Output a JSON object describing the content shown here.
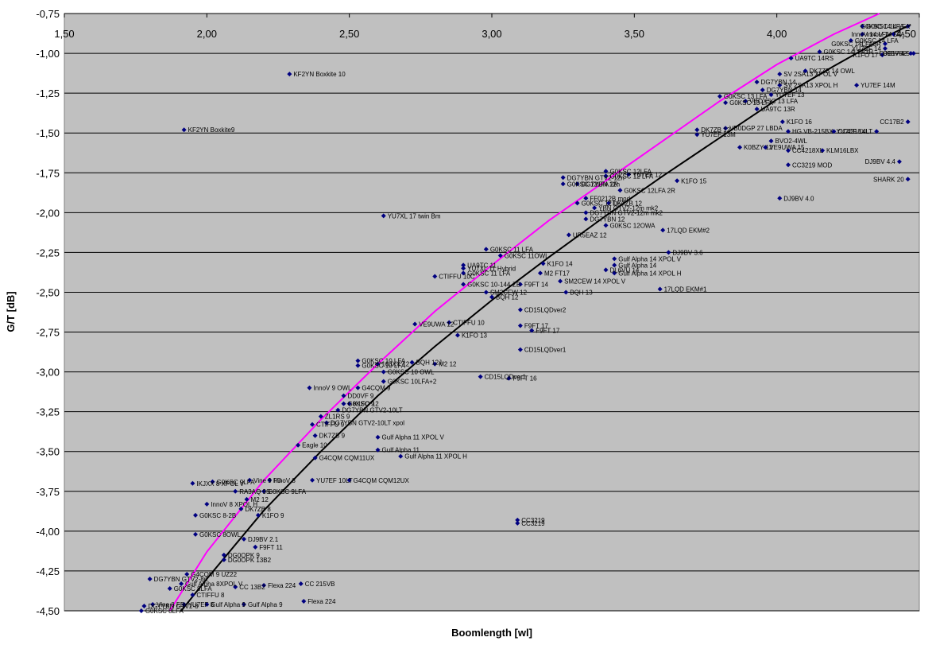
{
  "chart_data": {
    "type": "scatter",
    "title": "",
    "xlabel": "Boomlength [wl]",
    "ylabel": "G/T [dB]",
    "xlim": [
      1.5,
      4.5
    ],
    "ylim": [
      -4.5,
      -0.75
    ],
    "x_ticks": [
      "1,50",
      "2,00",
      "2,50",
      "3,00",
      "3,50",
      "4,00",
      "4,50"
    ],
    "y_ticks": [
      "-0,75",
      "-1,00",
      "-1,25",
      "-1,50",
      "-1,75",
      "-2,00",
      "-2,25",
      "-2,50",
      "-2,75",
      "-3,00",
      "-3,25",
      "-3,50",
      "-3,75",
      "-4,00",
      "-4,25",
      "-4,50"
    ],
    "grid": "horizontal",
    "legend": "none",
    "colors": {
      "plot_bg": "#c0c0c0",
      "marker": "#000080",
      "trend_upper": "#ff00ff",
      "trend_lower": "#000000",
      "grid": "#000000"
    },
    "trendlines": [
      {
        "color": "#ff00ff",
        "points": [
          [
            1.87,
            -4.5
          ],
          [
            2.0,
            -4.13
          ],
          [
            2.2,
            -3.68
          ],
          [
            2.4,
            -3.3
          ],
          [
            2.6,
            -2.95
          ],
          [
            2.8,
            -2.62
          ],
          [
            3.0,
            -2.33
          ],
          [
            3.2,
            -2.05
          ],
          [
            3.4,
            -1.8
          ],
          [
            3.6,
            -1.55
          ],
          [
            3.8,
            -1.3
          ],
          [
            4.0,
            -1.07
          ],
          [
            4.2,
            -0.88
          ],
          [
            4.36,
            -0.75
          ]
        ]
      },
      {
        "color": "#000000",
        "points": [
          [
            1.91,
            -4.5
          ],
          [
            2.0,
            -4.3
          ],
          [
            2.2,
            -3.87
          ],
          [
            2.4,
            -3.5
          ],
          [
            2.6,
            -3.15
          ],
          [
            2.8,
            -2.84
          ],
          [
            3.0,
            -2.55
          ],
          [
            3.2,
            -2.28
          ],
          [
            3.4,
            -2.02
          ],
          [
            3.6,
            -1.77
          ],
          [
            3.8,
            -1.53
          ],
          [
            4.0,
            -1.29
          ],
          [
            4.2,
            -1.08
          ],
          [
            4.4,
            -0.88
          ],
          [
            4.47,
            -0.82
          ]
        ]
      }
    ],
    "points": [
      {
        "x": 1.92,
        "y": -1.48,
        "label": "KF2YN Boxkite9"
      },
      {
        "x": 2.29,
        "y": -1.13,
        "label": "KF2YN Boxkite 10"
      },
      {
        "x": 2.62,
        "y": -2.02,
        "label": "YU7XL 17 twin Bm"
      },
      {
        "x": 2.36,
        "y": -3.1,
        "label": "InnoV 9 OWL"
      },
      {
        "x": 2.53,
        "y": -2.93,
        "label": "G0KSC 10 LFA"
      },
      {
        "x": 2.53,
        "y": -2.96,
        "label": "G0KSC 10 LFA"
      },
      {
        "x": 2.6,
        "y": -2.95,
        "label": "10JXX 12"
      },
      {
        "x": 2.72,
        "y": -2.94,
        "label": "BQH 12J"
      },
      {
        "x": 2.8,
        "y": -2.95,
        "label": "M2 12"
      },
      {
        "x": 2.62,
        "y": -3.0,
        "label": "G0KSC 10 OWL"
      },
      {
        "x": 2.62,
        "y": -3.06,
        "label": "G0KSC 10LFA+2"
      },
      {
        "x": 2.96,
        "y": -3.03,
        "label": "CD15LQDver1"
      },
      {
        "x": 3.06,
        "y": -3.04,
        "label": "F9FT 16"
      },
      {
        "x": 3.1,
        "y": -2.86,
        "label": "CD15LQDver1"
      },
      {
        "x": 3.14,
        "y": -2.74,
        "label": "F9FT 17"
      },
      {
        "x": 3.1,
        "y": -2.61,
        "label": "CD15LQDver2"
      },
      {
        "x": 3.1,
        "y": -2.71,
        "label": "F9FT 17"
      },
      {
        "x": 2.88,
        "y": -2.77,
        "label": "K1FO 13"
      },
      {
        "x": 2.73,
        "y": -2.7,
        "label": "VE9UWA 12"
      },
      {
        "x": 2.85,
        "y": -2.69,
        "label": "CTIFFU 10"
      },
      {
        "x": 2.53,
        "y": -3.1,
        "label": "G4CQM 9"
      },
      {
        "x": 2.48,
        "y": -3.15,
        "label": "DD0VF 9"
      },
      {
        "x": 2.48,
        "y": -3.2,
        "label": "G0KSC 9"
      },
      {
        "x": 2.46,
        "y": -3.24,
        "label": "DG7YBN GTV2-10LT"
      },
      {
        "x": 2.5,
        "y": -3.2,
        "label": "K1FO 12"
      },
      {
        "x": 2.4,
        "y": -3.28,
        "label": "ZL1RS 9"
      },
      {
        "x": 2.37,
        "y": -3.33,
        "label": "CTIFFU 9"
      },
      {
        "x": 2.42,
        "y": -3.32,
        "label": "DG7YBN GTV2-10LT xpol"
      },
      {
        "x": 2.38,
        "y": -3.4,
        "label": "DK7ZB 9"
      },
      {
        "x": 2.6,
        "y": -3.41,
        "label": "Gulf Alpha 11 XPOL V"
      },
      {
        "x": 2.6,
        "y": -3.49,
        "label": "Gulf Alpha 11"
      },
      {
        "x": 2.68,
        "y": -3.53,
        "label": "Gulf Alpha 11 XPOL H"
      },
      {
        "x": 2.38,
        "y": -3.54,
        "label": "G4CQM CQM11UX"
      },
      {
        "x": 2.32,
        "y": -3.46,
        "label": "Eagle 10"
      },
      {
        "x": 2.5,
        "y": -3.68,
        "label": "G4CQM CQM12UX"
      },
      {
        "x": 2.37,
        "y": -3.68,
        "label": "YU7EF 10LT"
      },
      {
        "x": 2.15,
        "y": -3.68,
        "label": "Vine 9 FD"
      },
      {
        "x": 2.22,
        "y": -3.68,
        "label": "InnoV 8"
      },
      {
        "x": 2.02,
        "y": -3.69,
        "label": "G0KSC 9LFA"
      },
      {
        "x": 1.95,
        "y": -3.7,
        "label": "IKJXX 8 XPOL V"
      },
      {
        "x": 2.2,
        "y": -3.75,
        "label": "G0KSC 9LFA"
      },
      {
        "x": 2.1,
        "y": -3.75,
        "label": "RA3AQ 9S"
      },
      {
        "x": 2.14,
        "y": -3.8,
        "label": "M2 12"
      },
      {
        "x": 2.0,
        "y": -3.83,
        "label": "InnoV 8 XPOL H"
      },
      {
        "x": 2.12,
        "y": -3.86,
        "label": "DK7ZB 8"
      },
      {
        "x": 2.18,
        "y": -3.9,
        "label": "K1FO 9"
      },
      {
        "x": 1.96,
        "y": -3.9,
        "label": "G0KSC 8-2B"
      },
      {
        "x": 1.96,
        "y": -4.02,
        "label": "G0KSC 8OWL"
      },
      {
        "x": 2.13,
        "y": -4.05,
        "label": "DJ9BV 2.1"
      },
      {
        "x": 2.17,
        "y": -4.1,
        "label": "F9FT 11"
      },
      {
        "x": 2.06,
        "y": -4.15,
        "label": "DG0OPK 9"
      },
      {
        "x": 2.06,
        "y": -4.18,
        "label": "DG0OPK 13B2"
      },
      {
        "x": 1.93,
        "y": -4.27,
        "label": "G4CQM 9 UZ22"
      },
      {
        "x": 1.8,
        "y": -4.3,
        "label": "DG7YBN GTV2-8n"
      },
      {
        "x": 1.91,
        "y": -4.33,
        "label": "Gulf Alpha 8XPOL V"
      },
      {
        "x": 2.1,
        "y": -4.35,
        "label": "CC 13B2"
      },
      {
        "x": 2.2,
        "y": -4.34,
        "label": "Flexa 224"
      },
      {
        "x": 2.33,
        "y": -4.33,
        "label": "CC 215VB"
      },
      {
        "x": 2.34,
        "y": -4.44,
        "label": "Flexa 224"
      },
      {
        "x": 1.87,
        "y": -4.36,
        "label": "G0KSC 8LFA"
      },
      {
        "x": 1.95,
        "y": -4.4,
        "label": "CTIFFU 8"
      },
      {
        "x": 1.81,
        "y": -4.46,
        "label": "Vine 8 FD"
      },
      {
        "x": 1.78,
        "y": -4.47,
        "label": "DG7YBN GTV2-8"
      },
      {
        "x": 1.92,
        "y": -4.46,
        "label": "YU7EF 8"
      },
      {
        "x": 2.0,
        "y": -4.46,
        "label": "Gulf Alpha 9"
      },
      {
        "x": 1.77,
        "y": -4.5,
        "label": "G0KSC 8LFA"
      },
      {
        "x": 2.13,
        "y": -4.46,
        "label": "Gulf Alpha 9"
      },
      {
        "x": 2.98,
        "y": -2.23,
        "label": "G0KSC 11 LFA"
      },
      {
        "x": 3.03,
        "y": -2.27,
        "label": "G0KSC 11OWL"
      },
      {
        "x": 2.9,
        "y": -2.33,
        "label": "UA9TC 11"
      },
      {
        "x": 2.9,
        "y": -2.35,
        "label": "YU7XL 11 Hybrid"
      },
      {
        "x": 2.9,
        "y": -2.38,
        "label": "G0KSC 11 LFA"
      },
      {
        "x": 2.8,
        "y": -2.4,
        "label": "CTIFFU 10C"
      },
      {
        "x": 2.9,
        "y": -2.45,
        "label": "G0KSC 10-144-ZB"
      },
      {
        "x": 2.98,
        "y": -2.5,
        "label": "SM2CEW 12"
      },
      {
        "x": 3.0,
        "y": -2.53,
        "label": "BQH 12"
      },
      {
        "x": 3.1,
        "y": -2.45,
        "label": "F9FT 14"
      },
      {
        "x": 3.17,
        "y": -2.38,
        "label": "M2 FT17"
      },
      {
        "x": 3.18,
        "y": -2.32,
        "label": "K1FO 14"
      },
      {
        "x": 3.26,
        "y": -2.5,
        "label": "BQH 13"
      },
      {
        "x": 3.24,
        "y": -2.43,
        "label": "SM2CEW 14 XPOL V"
      },
      {
        "x": 3.4,
        "y": -2.36,
        "label": "DL6VU 14"
      },
      {
        "x": 3.43,
        "y": -2.29,
        "label": "Gulf Alpha 14 XPOL V"
      },
      {
        "x": 3.43,
        "y": -2.33,
        "label": "Gulf Alpha 14"
      },
      {
        "x": 3.43,
        "y": -2.38,
        "label": "Gulf Alpha 14 XPOL H"
      },
      {
        "x": 3.62,
        "y": -2.25,
        "label": "DJ9BV 3.6"
      },
      {
        "x": 3.59,
        "y": -2.48,
        "label": "17LQD EKM#1"
      },
      {
        "x": 3.6,
        "y": -2.11,
        "label": "17LQD EKM#2"
      },
      {
        "x": 3.27,
        "y": -2.14,
        "label": "UR5EAZ 12"
      },
      {
        "x": 3.33,
        "y": -2.04,
        "label": "DG7YBN 12"
      },
      {
        "x": 3.33,
        "y": -2.0,
        "label": "DG7YBN GTV2-12m mk2"
      },
      {
        "x": 3.36,
        "y": -1.97,
        "label": "YBN GTV2-12m mk2"
      },
      {
        "x": 3.3,
        "y": -1.94,
        "label": "G0KSC 12 LFA"
      },
      {
        "x": 3.4,
        "y": -2.08,
        "label": "G0KSC 12OWA"
      },
      {
        "x": 3.41,
        "y": -1.94,
        "label": "DK7ZB 12"
      },
      {
        "x": 3.33,
        "y": -1.91,
        "label": "FF0212B mod"
      },
      {
        "x": 3.3,
        "y": -1.82,
        "label": "DG7YBN 12n"
      },
      {
        "x": 3.25,
        "y": -1.82,
        "label": "G0KSC 12LFA 2R"
      },
      {
        "x": 3.25,
        "y": -1.78,
        "label": "DG7YBN GTV2-12n"
      },
      {
        "x": 3.4,
        "y": -1.74,
        "label": "G0KSC 12LFA"
      },
      {
        "x": 3.4,
        "y": -1.77,
        "label": "G0KSC 12 LFA"
      },
      {
        "x": 3.48,
        "y": -1.76,
        "label": "YU7EF 12"
      },
      {
        "x": 3.45,
        "y": -1.86,
        "label": "G0KSC 12LFA 2R"
      },
      {
        "x": 3.65,
        "y": -1.8,
        "label": "K1FO 15"
      },
      {
        "x": 3.72,
        "y": -1.51,
        "label": "YU7EF 13M"
      },
      {
        "x": 3.72,
        "y": -1.48,
        "label": "DK7ZB 12"
      },
      {
        "x": 3.82,
        "y": -1.47,
        "label": "VB0DGP 27 LBDA"
      },
      {
        "x": 3.87,
        "y": -1.59,
        "label": "K0BZY 12"
      },
      {
        "x": 3.96,
        "y": -1.59,
        "label": "VE9UWA 15"
      },
      {
        "x": 3.98,
        "y": -1.55,
        "label": "BVO2-4WL"
      },
      {
        "x": 4.02,
        "y": -1.43,
        "label": "K1FO 16"
      },
      {
        "x": 4.04,
        "y": -1.49,
        "label": "HG VB-215BX"
      },
      {
        "x": 4.04,
        "y": -1.61,
        "label": "CC4218XL"
      },
      {
        "x": 4.16,
        "y": -1.61,
        "label": "KLM16LBX"
      },
      {
        "x": 4.2,
        "y": -1.49,
        "label": "CC4218XL"
      },
      {
        "x": 4.04,
        "y": -1.7,
        "label": "CC3219 MOD"
      },
      {
        "x": 4.01,
        "y": -1.91,
        "label": "DJ9BV 4.0"
      },
      {
        "x": 4.35,
        "y": -1.49,
        "label": "YU7EF 14LT"
      },
      {
        "x": 4.46,
        "y": -1.43,
        "label": "CC17B2"
      },
      {
        "x": 4.43,
        "y": -1.68,
        "label": "DJ9BV 4.4"
      },
      {
        "x": 4.46,
        "y": -1.79,
        "label": "SHARK 20"
      },
      {
        "x": 4.1,
        "y": -1.11,
        "label": "DK7ZB 14 OWL"
      },
      {
        "x": 3.93,
        "y": -1.18,
        "label": "DG7YBN 14"
      },
      {
        "x": 3.95,
        "y": -1.23,
        "label": "DG7YBN 14"
      },
      {
        "x": 3.98,
        "y": -1.26,
        "label": "YU7EF 13"
      },
      {
        "x": 4.01,
        "y": -1.13,
        "label": "SV 2SA13 XPOL V"
      },
      {
        "x": 4.01,
        "y": -1.2,
        "label": "SV 2SA13 XPOL H"
      },
      {
        "x": 4.28,
        "y": -1.2,
        "label": "YU7EF 14M"
      },
      {
        "x": 3.8,
        "y": -1.27,
        "label": "G0KSC 13 LFA"
      },
      {
        "x": 3.82,
        "y": -1.31,
        "label": "G0KSC 13 LFA"
      },
      {
        "x": 3.89,
        "y": -1.3,
        "label": "VBOXSC 13 LFA"
      },
      {
        "x": 3.93,
        "y": -1.35,
        "label": "UA9TC 13R"
      },
      {
        "x": 4.05,
        "y": -1.03,
        "label": "UA9TC 14RS"
      },
      {
        "x": 4.15,
        "y": -0.99,
        "label": "G0KSC 14LFA3R"
      },
      {
        "x": 4.26,
        "y": -0.92,
        "label": "G0KSC 14 LFA"
      },
      {
        "x": 4.3,
        "y": -0.88,
        "label": "InnoV 14 LFA"
      },
      {
        "x": 4.3,
        "y": -0.83,
        "label": "G0KSC 14 LFA"
      },
      {
        "x": 4.38,
        "y": -0.94,
        "label": "G0KSC 14LFA3R"
      },
      {
        "x": 4.38,
        "y": -0.97,
        "label": "YU7EF 14"
      },
      {
        "x": 4.41,
        "y": -0.88,
        "label": "InnoV 14 LFA"
      },
      {
        "x": 4.46,
        "y": -0.83,
        "label": "G0KSC 14 LFA"
      },
      {
        "x": 4.37,
        "y": -1.01,
        "label": "K1FO 17"
      },
      {
        "x": 4.47,
        "y": -1.0,
        "label": "CC17B2"
      },
      {
        "x": 4.48,
        "y": -1.0,
        "label": "DJ9BV 4.5"
      },
      {
        "x": 3.09,
        "y": -3.93,
        "label": "CC3219"
      },
      {
        "x": 3.09,
        "y": -3.95,
        "label": "CC3219"
      }
    ]
  }
}
